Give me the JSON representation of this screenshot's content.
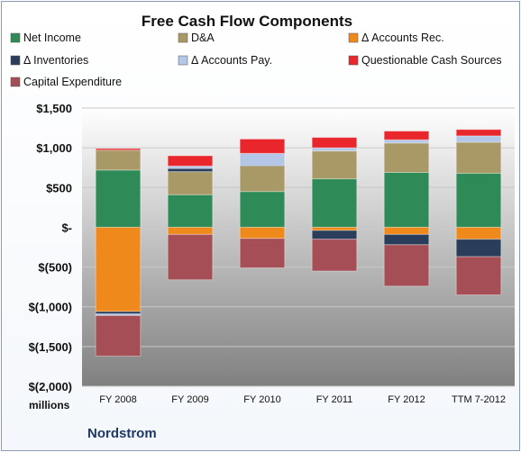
{
  "chart_data": {
    "type": "bar",
    "stacked": true,
    "title": "Free Cash Flow Components",
    "categories": [
      "FY 2008",
      "FY 2009",
      "FY 2010",
      "FY 2011",
      "FY 2012",
      "TTM 7-2012"
    ],
    "series": [
      {
        "name": "Net Income",
        "color": "#2e8b57",
        "values": [
          720,
          410,
          450,
          610,
          690,
          680
        ]
      },
      {
        "name": "D&A",
        "color": "#a89966",
        "values": [
          250,
          290,
          320,
          350,
          370,
          390
        ]
      },
      {
        "name": "Δ Accounts Rec.",
        "color": "#f0891c",
        "values": [
          -1060,
          -90,
          -140,
          -40,
          -90,
          -150
        ]
      },
      {
        "name": "Δ Inventories",
        "color": "#2a3e5c",
        "values": [
          -30,
          40,
          10,
          -110,
          -130,
          -220
        ]
      },
      {
        "name": "Δ Accounts Pay.",
        "color": "#b4c7e7",
        "values": [
          -20,
          30,
          150,
          40,
          40,
          80
        ]
      },
      {
        "name": "Questionable Cash Sources",
        "color": "#e8262c",
        "values": [
          20,
          130,
          180,
          130,
          110,
          80
        ]
      },
      {
        "name": "Capital Expenditure",
        "color": "#a54e55",
        "values": [
          -510,
          -570,
          -370,
          -400,
          -520,
          -480
        ]
      }
    ],
    "ylim": [
      -2000,
      1500
    ],
    "yticks": [
      1500,
      1000,
      500,
      0,
      -500,
      -1000,
      -1500,
      -2000
    ],
    "ytick_labels": [
      "$1,500",
      "$1,000",
      "$500",
      "$-",
      "$(500)",
      "$(1,000)",
      "$(1,500)",
      "$(2,000)"
    ],
    "units_label": "millions",
    "legend_position": "top",
    "grid": true
  },
  "company": "Nordstrom"
}
